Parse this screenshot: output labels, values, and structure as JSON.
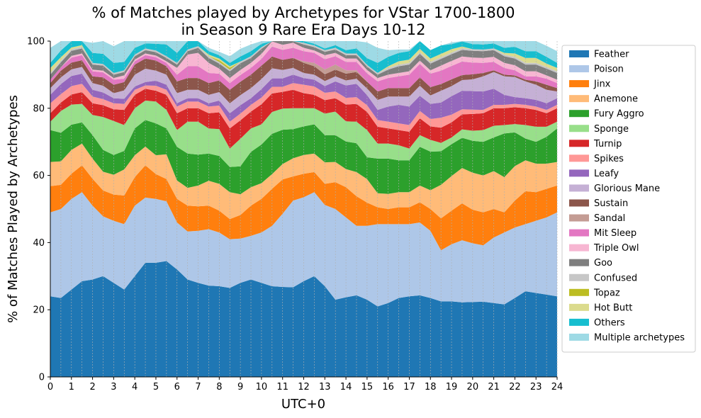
{
  "chart_data": {
    "type": "area",
    "stacked": true,
    "title": [
      "% of Matches played by Archetypes for VStar 1700-1800",
      "in Season 9 Rare Era Days 10-12"
    ],
    "xlabel": "UTC+0",
    "ylabel": "% of Matches Played by Archetypes",
    "xlim": [
      0,
      24
    ],
    "ylim": [
      0,
      100
    ],
    "x_ticks": [
      0,
      1,
      2,
      3,
      4,
      5,
      6,
      7,
      8,
      9,
      10,
      11,
      12,
      13,
      14,
      15,
      16,
      17,
      18,
      19,
      20,
      21,
      22,
      23,
      24
    ],
    "y_ticks": [
      0,
      20,
      40,
      60,
      80,
      100
    ],
    "grid": "vertical dashed at every 0.5",
    "legend_position": "outside-right",
    "x": [
      0,
      0.5,
      1,
      1.5,
      2,
      2.5,
      3,
      3.5,
      4,
      4.5,
      5,
      5.5,
      6,
      6.5,
      7,
      7.5,
      8,
      8.5,
      9,
      9.5,
      10,
      10.5,
      11,
      11.5,
      12,
      12.5,
      13,
      13.5,
      14,
      14.5,
      15,
      15.5,
      16,
      16.5,
      17,
      17.5,
      18,
      18.5,
      19,
      19.5,
      20,
      20.5,
      21,
      21.5,
      22,
      22.5,
      23,
      23.5,
      24
    ],
    "series": [
      {
        "name": "Feather",
        "color": "#1f77b4",
        "values": [
          24,
          23.5,
          26,
          28.5,
          29,
          30,
          28,
          26,
          30,
          34,
          34,
          34.5,
          32,
          29,
          28,
          27.2,
          27,
          26.5,
          28,
          29,
          28,
          27,
          26.8,
          26.7,
          28.5,
          30,
          27,
          23,
          23.7,
          24.3,
          23,
          21,
          22,
          23.5,
          24,
          24.3,
          23.5,
          22.5,
          22.5,
          22.2,
          22.3,
          22.4,
          22,
          21.6,
          23.5,
          25.5,
          25,
          24.5,
          24
        ]
      },
      {
        "name": "Poison",
        "color": "#aec7e8",
        "values": [
          25,
          26.5,
          27,
          26.5,
          22,
          17.8,
          18.5,
          19.5,
          21,
          19.4,
          19,
          17.8,
          14,
          14.3,
          15.5,
          16.8,
          16,
          14.5,
          13.2,
          13,
          15,
          18,
          21.8,
          25.8,
          25,
          25,
          24.2,
          27,
          23.8,
          20.7,
          22,
          24.5,
          23.5,
          22,
          21.5,
          21.7,
          20,
          15.2,
          17,
          18.5,
          17.5,
          16.8,
          19.5,
          21.4,
          21,
          20,
          21.5,
          23,
          25
        ]
      },
      {
        "name": "Jinx",
        "color": "#ff7f0e",
        "values": [
          7.8,
          7.2,
          7.5,
          8,
          8,
          7.7,
          7.8,
          8.5,
          8.5,
          9.6,
          7.4,
          6.6,
          7,
          7.7,
          7.3,
          7,
          6.5,
          6,
          7,
          9,
          10,
          11,
          10.2,
          7.2,
          7,
          6,
          6.3,
          8,
          9,
          8.8,
          6.9,
          5,
          4.5,
          5,
          5,
          6,
          6.5,
          9.5,
          10,
          11,
          10,
          9.8,
          8.5,
          6,
          8,
          9.8,
          8.5,
          8.5,
          8
        ]
      },
      {
        "name": "Anemone",
        "color": "#ffbb78",
        "values": [
          7.2,
          7,
          7.1,
          6.5,
          6,
          5.6,
          5.9,
          7.8,
          6.5,
          5.6,
          5.6,
          7.4,
          5.5,
          5.3,
          6.2,
          7.4,
          8,
          8,
          6.2,
          5.5,
          4.7,
          4.4,
          4.6,
          5.4,
          5.6,
          5.5,
          6.4,
          6,
          5.4,
          7.2,
          7,
          4.2,
          4.5,
          4.5,
          4.5,
          5,
          5.6,
          10,
          10.3,
          10.5,
          11,
          11,
          11.3,
          10.5,
          10.3,
          9.2,
          8.5,
          7.5,
          7
        ]
      },
      {
        "name": "Fury Aggro",
        "color": "#2ca02c",
        "values": [
          9.5,
          8.5,
          7.5,
          6.3,
          7,
          6.5,
          5.9,
          5.5,
          8,
          7.9,
          9.5,
          7.7,
          10,
          10.2,
          9.2,
          8.1,
          8.3,
          7.5,
          8.3,
          10.5,
          11.5,
          12,
          10.2,
          8.7,
          8.5,
          8.7,
          8.1,
          8,
          8.2,
          8.6,
          6.5,
          10.3,
          10.5,
          9.5,
          9.5,
          11.5,
          11.5,
          10,
          9.5,
          9,
          9.5,
          10,
          10,
          13,
          10,
          6.5,
          6.5,
          8,
          10
        ]
      },
      {
        "name": "Sponge",
        "color": "#98df8a",
        "values": [
          2.5,
          6.5,
          6,
          5.5,
          6,
          9.8,
          10.1,
          7.7,
          6,
          5.8,
          6.5,
          5.5,
          5,
          9.5,
          9.8,
          7.5,
          8,
          5.5,
          8.2,
          7,
          6,
          6.5,
          6.3,
          6.2,
          5.4,
          4.8,
          6.4,
          7,
          6,
          6.4,
          8.1,
          4.5,
          4.5,
          4.5,
          3.5,
          3.5,
          3.5,
          2.5,
          2,
          2.5,
          3,
          3.5,
          3.5,
          2.5,
          2.5,
          4,
          4.5,
          3,
          2
        ]
      },
      {
        "name": "Turnip",
        "color": "#d62728",
        "values": [
          2.5,
          2.5,
          3,
          3.5,
          3.5,
          3.5,
          3.5,
          4.5,
          4,
          3.5,
          3.2,
          4.5,
          5,
          4,
          4,
          4.5,
          5,
          6,
          5.5,
          5,
          6,
          5.5,
          5,
          5.5,
          4.5,
          4,
          4,
          4,
          5,
          5.3,
          5.4,
          5,
          4.5,
          4.5,
          5,
          5,
          4,
          4.5,
          4.5,
          4.5,
          5,
          5,
          5.2,
          5,
          5,
          5,
          5,
          4,
          4
        ]
      },
      {
        "name": "Spikes",
        "color": "#ff9896",
        "values": [
          3,
          2.5,
          2.5,
          2.5,
          2,
          1.8,
          1.8,
          1.8,
          1.5,
          1,
          1.5,
          1.5,
          2,
          2,
          2,
          2,
          2,
          2,
          2,
          2,
          2,
          2,
          1.5,
          2,
          2.5,
          2.5,
          2.2,
          2,
          2,
          2,
          2,
          2,
          2,
          2,
          2,
          2.2,
          2.2,
          3,
          2.3,
          1.5,
          1.3,
          1,
          1,
          1,
          1,
          1,
          1,
          1,
          1
        ]
      },
      {
        "name": "Leafy",
        "color": "#9467bd",
        "values": [
          2.5,
          3,
          3,
          3,
          2,
          2,
          1.5,
          1.5,
          1,
          1,
          1.5,
          1.5,
          1,
          1,
          1,
          1,
          1.5,
          2.5,
          2.5,
          2,
          2.5,
          2.5,
          2.5,
          2.5,
          2,
          2,
          2,
          3,
          3.7,
          4,
          3,
          3,
          4.5,
          5.5,
          5.5,
          4.5,
          4.5,
          4.5,
          5.5,
          5.5,
          5.5,
          5.5,
          4.8,
          3,
          2,
          2,
          2,
          2,
          2
        ]
      },
      {
        "name": "Glorious Mane",
        "color": "#c5b0d5",
        "values": [
          2,
          2,
          2,
          2,
          2,
          2,
          1.5,
          2.5,
          3.5,
          4,
          3,
          3,
          3,
          2.5,
          2.5,
          2.5,
          2.5,
          3,
          3,
          3,
          3,
          3,
          2.5,
          2,
          1.5,
          1.5,
          1.5,
          1.5,
          1.5,
          1.5,
          2,
          3,
          3,
          2.5,
          3,
          3,
          2.5,
          3.5,
          3,
          3.2,
          3.5,
          4.5,
          5,
          5.5,
          6,
          5,
          4.5,
          4,
          2
        ]
      },
      {
        "name": "Sustain",
        "color": "#8c564b",
        "values": [
          1.5,
          2,
          2,
          2,
          2,
          2.5,
          2.5,
          2.5,
          3,
          3,
          3,
          2.5,
          3.5,
          3.5,
          3.5,
          3.5,
          3.5,
          4,
          4,
          4,
          4,
          3.5,
          3,
          3,
          3,
          2.5,
          2,
          2,
          2,
          2,
          2,
          2.5,
          2.5,
          2.5,
          2.5,
          2.5,
          2.5,
          2,
          2,
          1.5,
          1.5,
          1,
          0.5,
          0.5,
          0.5,
          0.5,
          1,
          1.5,
          1
        ]
      },
      {
        "name": "Sandal",
        "color": "#c49c94",
        "values": [
          0,
          0,
          0,
          0,
          0,
          0,
          0,
          0,
          0,
          0,
          0,
          0,
          0,
          0,
          0,
          0,
          0,
          0,
          0,
          0,
          0,
          0,
          0,
          0,
          0.5,
          1,
          1.5,
          1.5,
          1,
          0.5,
          0,
          0,
          0,
          0,
          0,
          0,
          0,
          0,
          0,
          0,
          0,
          0,
          0,
          0,
          0,
          0,
          0,
          0,
          0
        ]
      },
      {
        "name": "Mit Sleep",
        "color": "#e377c2",
        "values": [
          1,
          1,
          1.5,
          1.5,
          1.5,
          1.5,
          1.5,
          1,
          1,
          1,
          1,
          1,
          2,
          3.5,
          3.5,
          3,
          2,
          2,
          2,
          2,
          2,
          3,
          3,
          3,
          3,
          3,
          3,
          2.5,
          2.5,
          2.5,
          2.5,
          3,
          3,
          3.5,
          4,
          4,
          4,
          4,
          4,
          4,
          3.5,
          3,
          2.5,
          2,
          1.5,
          1,
          1.5,
          1.8,
          1.5
        ]
      },
      {
        "name": "Triple Owl",
        "color": "#f7b6d2",
        "values": [
          0,
          0,
          0.5,
          0.5,
          0.5,
          0.5,
          0.5,
          1,
          0.5,
          0.5,
          0.5,
          0.5,
          2,
          3.5,
          4,
          3,
          1.5,
          1.5,
          1.5,
          1.5,
          1.5,
          1.5,
          1.5,
          1.5,
          1,
          0.7,
          1.2,
          1,
          1,
          1,
          1,
          1,
          1,
          1,
          1,
          1,
          1,
          1.5,
          1.5,
          1.5,
          1.5,
          1.5,
          1.5,
          1.5,
          1.5,
          1.5,
          1.5,
          1,
          1
        ]
      },
      {
        "name": "Goo",
        "color": "#7f7f7f",
        "values": [
          1.5,
          1.5,
          1.5,
          1.5,
          1.5,
          1.5,
          1,
          1,
          1,
          1,
          1,
          1,
          1,
          1,
          1.5,
          1.5,
          1.5,
          2,
          2,
          1.5,
          1.5,
          1.5,
          1.5,
          1.2,
          1,
          1,
          1,
          1,
          1,
          1,
          1,
          1,
          1.5,
          2,
          2,
          2,
          2,
          2,
          2,
          2,
          2,
          2,
          2,
          2,
          2,
          2,
          2,
          2,
          2
        ]
      },
      {
        "name": "Confused",
        "color": "#c7c7c7",
        "values": [
          0.5,
          0.5,
          0.5,
          0.5,
          0.5,
          0.5,
          0.5,
          0.5,
          0.5,
          0.5,
          0.5,
          0.5,
          0.5,
          0.5,
          0.5,
          0.5,
          0.5,
          0.5,
          0.5,
          0.5,
          0.5,
          0.5,
          0.5,
          0.5,
          0.5,
          0.5,
          0.5,
          0.5,
          0.5,
          0.5,
          0.5,
          0.5,
          0.5,
          0.5,
          0.5,
          0.5,
          0.5,
          0.5,
          0.5,
          0.5,
          0.5,
          0.5,
          0.5,
          0.5,
          0.5,
          0.5,
          0.5,
          0.5,
          0.5
        ]
      },
      {
        "name": "Topaz",
        "color": "#bcbd22",
        "values": [
          0,
          0,
          0,
          0,
          0,
          0,
          0,
          0,
          0,
          0,
          0,
          0,
          0,
          0,
          0,
          0,
          0.5,
          0.5,
          0,
          0,
          0,
          0,
          0,
          0,
          0,
          0,
          0,
          0,
          0,
          0,
          0,
          0,
          0,
          0,
          0,
          0,
          0,
          0,
          0,
          0,
          0,
          0,
          0,
          0,
          0,
          0,
          0,
          0,
          0
        ]
      },
      {
        "name": "Hot Butt",
        "color": "#dbdb8d",
        "values": [
          1.5,
          1,
          0.5,
          0.5,
          0,
          0,
          0,
          0,
          0,
          0,
          0,
          0,
          0,
          0,
          0,
          0.5,
          0.5,
          0.5,
          0,
          0,
          0,
          0,
          0,
          0,
          0,
          0,
          0,
          0,
          0,
          0,
          0,
          0,
          0.5,
          1,
          1,
          1,
          1,
          1,
          1,
          0.5,
          0,
          0,
          0,
          0.5,
          1,
          1.5,
          1.5,
          1,
          1
        ]
      },
      {
        "name": "Others",
        "color": "#17becf",
        "values": [
          1.5,
          2,
          2,
          2,
          3,
          3,
          3,
          2.5,
          2,
          1.5,
          2,
          3.5,
          3,
          3,
          1.5,
          1,
          1,
          1,
          1.5,
          1.5,
          1,
          1,
          0.8,
          0.5,
          0.5,
          0.5,
          0.5,
          0.8,
          1,
          1.5,
          2,
          3,
          2.8,
          2.5,
          2.5,
          2.5,
          2.5,
          2.5,
          1.5,
          1.5,
          1.5,
          1.5,
          1.5,
          1.5,
          2,
          2,
          2,
          2,
          1.5
        ]
      },
      {
        "name": "Multiple archetypes",
        "color": "#9edae5",
        "values": [
          4.5,
          4.3,
          2.0,
          1.7,
          3.0,
          4.3,
          5.0,
          6.3,
          2.5,
          1.7,
          2.3,
          5.0,
          3.5,
          2.0,
          1.0,
          1.0,
          1.0,
          2.0,
          2.3,
          2.0,
          2.3,
          2.1,
          2.8,
          3.0,
          2.5,
          2.6,
          2.7,
          2.7,
          2.7,
          3.2,
          4.7,
          4.5,
          2.0,
          1.0,
          0.5,
          0.0,
          0.0,
          0.0,
          0.5,
          1.4,
          2.0,
          2.3,
          2.2,
          2.1,
          2.7,
          4.5,
          4.0,
          3.3,
          3.5
        ]
      }
    ]
  }
}
